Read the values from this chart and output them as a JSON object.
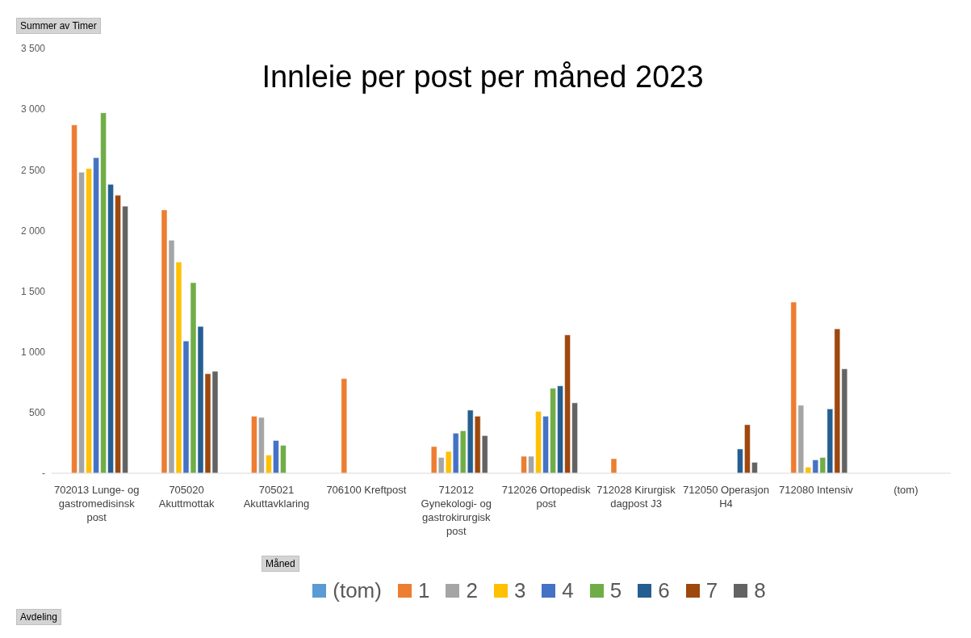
{
  "chart_data": {
    "type": "bar",
    "title": "Innleie per post per måned 2023",
    "ylabel": "Summer av Timer",
    "annotations": [
      "Avdeling"
    ],
    "legend_title": "Måned",
    "legend": "bottom",
    "categories": [
      "702013 Lunge- og gastromedisinsk post",
      "705020 Akuttmottak",
      "705021 Akuttavklaring",
      "706100 Kreftpost",
      "712012 Gynekologi- og gastrokirurgisk post",
      "712026 Ortopedisk post",
      "712028 Kirurgisk dagpost J3",
      "712050 Operasjon H4",
      "712080 Intensiv",
      "(tom)"
    ],
    "ylim": [
      0,
      3500
    ],
    "yticks": [
      {
        "value": 0,
        "label": "-"
      },
      {
        "value": 500,
        "label": "500"
      },
      {
        "value": 1000,
        "label": "1 000"
      },
      {
        "value": 1500,
        "label": "1 500"
      },
      {
        "value": 2000,
        "label": "2 000"
      },
      {
        "value": 2500,
        "label": "2 500"
      },
      {
        "value": 3000,
        "label": "3 000"
      },
      {
        "value": 3500,
        "label": "3 500"
      }
    ],
    "series": [
      {
        "name": "(tom)",
        "color": "#5b9bd5",
        "values": [
          null,
          null,
          null,
          null,
          null,
          null,
          null,
          null,
          null,
          null
        ]
      },
      {
        "name": "1",
        "color": "#ed7d31",
        "values": [
          2870,
          2170,
          470,
          780,
          220,
          140,
          120,
          null,
          1410,
          null
        ]
      },
      {
        "name": "2",
        "color": "#a5a5a5",
        "values": [
          2480,
          1920,
          460,
          null,
          130,
          140,
          null,
          null,
          560,
          null
        ]
      },
      {
        "name": "3",
        "color": "#ffc000",
        "values": [
          2510,
          1740,
          150,
          null,
          180,
          510,
          null,
          null,
          50,
          null
        ]
      },
      {
        "name": "4",
        "color": "#4472c4",
        "values": [
          2600,
          1090,
          270,
          null,
          330,
          470,
          null,
          null,
          110,
          null
        ]
      },
      {
        "name": "5",
        "color": "#70ad47",
        "values": [
          2970,
          1570,
          230,
          null,
          350,
          700,
          null,
          null,
          130,
          null
        ]
      },
      {
        "name": "6",
        "color": "#255e91",
        "values": [
          2380,
          1210,
          null,
          null,
          520,
          720,
          null,
          200,
          530,
          null
        ]
      },
      {
        "name": "7",
        "color": "#9e480e",
        "values": [
          2290,
          820,
          null,
          null,
          470,
          1140,
          null,
          400,
          1190,
          null
        ]
      },
      {
        "name": "8",
        "color": "#636363",
        "values": [
          2200,
          840,
          null,
          null,
          310,
          580,
          null,
          90,
          860,
          null
        ]
      }
    ]
  }
}
